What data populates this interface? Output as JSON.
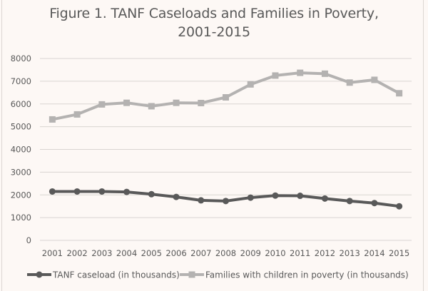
{
  "chart_data": {
    "type": "line",
    "title_line1": "Figure 1. TANF Caseloads and Families in Poverty,",
    "title_line2": "2001-2015",
    "xlabel": "",
    "ylabel": "",
    "categories": [
      "2001",
      "2002",
      "2003",
      "2004",
      "2005",
      "2006",
      "2007",
      "2008",
      "2009",
      "2010",
      "2011",
      "2012",
      "2013",
      "2014",
      "2015"
    ],
    "ylim": [
      0,
      8000
    ],
    "yticks": [
      0,
      1000,
      2000,
      3000,
      4000,
      5000,
      6000,
      7000,
      8000
    ],
    "grid": true,
    "legend_position": "bottom",
    "series": [
      {
        "name": "TANF caseload (in thousands)",
        "color": "#595959",
        "marker": "circle",
        "values": [
          2150,
          2150,
          2150,
          2130,
          2030,
          1910,
          1760,
          1730,
          1880,
          1970,
          1960,
          1840,
          1730,
          1640,
          1500
        ]
      },
      {
        "name": "Families with children in poverty (in thousands)",
        "color": "#b4b2b1",
        "marker": "square",
        "values": [
          5320,
          5540,
          5980,
          6050,
          5900,
          6050,
          6040,
          6290,
          6860,
          7250,
          7370,
          7330,
          6940,
          7060,
          6470
        ]
      }
    ]
  },
  "colors": {
    "background": "#fdf8f5",
    "gridline": "#d9d5d2",
    "text": "#595959"
  }
}
